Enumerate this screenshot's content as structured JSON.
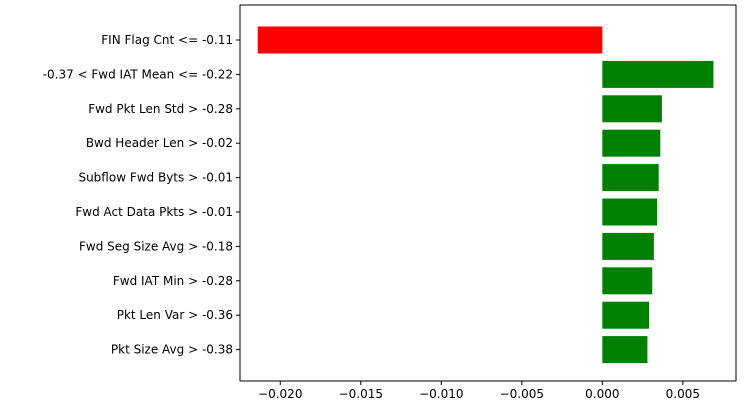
{
  "chart_data": {
    "type": "bar",
    "orientation": "horizontal",
    "title": "",
    "xlabel": "",
    "ylabel": "",
    "categories": [
      "FIN Flag Cnt <= -0.11",
      "-0.37 < Fwd IAT Mean <= -0.22",
      "Fwd Pkt Len Std > -0.28",
      "Bwd Header Len > -0.02",
      "Subflow Fwd Byts > -0.01",
      "Fwd Act Data Pkts > -0.01",
      "Fwd Seg Size Avg > -0.18",
      "Fwd IAT Min > -0.28",
      "Pkt Len Var > -0.36",
      "Pkt Size Avg > -0.38"
    ],
    "values": [
      -0.0214,
      0.0069,
      0.0037,
      0.0036,
      0.0035,
      0.0034,
      0.0032,
      0.0031,
      0.0029,
      0.0028
    ],
    "xlim": [
      -0.0225,
      0.0083
    ],
    "xticks": [
      -0.02,
      -0.015,
      -0.01,
      -0.005,
      0.0,
      0.005
    ],
    "xtick_labels": [
      "−0.020",
      "−0.015",
      "−0.010",
      "−0.005",
      "0.000",
      "0.005"
    ],
    "colors": {
      "positive": "#008000",
      "negative": "#ff0000",
      "axis": "#000000"
    },
    "grid": false,
    "legend": "none"
  }
}
